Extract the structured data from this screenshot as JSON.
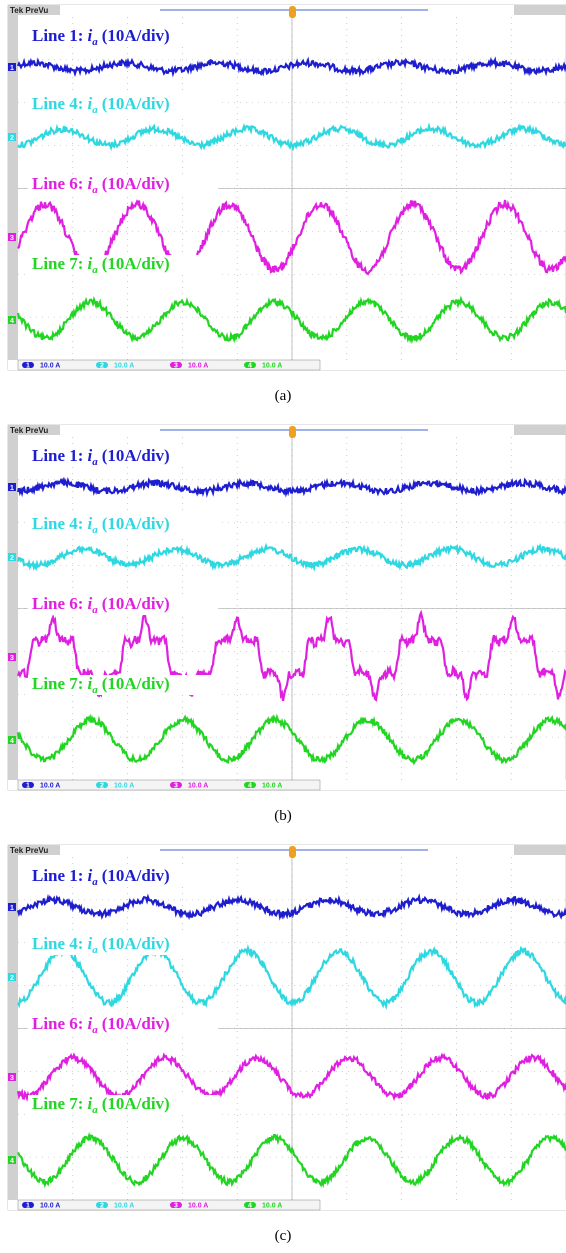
{
  "panels": [
    {
      "caption": "(a)",
      "header": "Tek PreVu",
      "traces": [
        {
          "line": "Line 1:",
          "symbol": "i",
          "subscript": "a",
          "scale": "(10A/div)",
          "marker": "1",
          "color": "#1e1ecf"
        },
        {
          "line": "Line 4:",
          "symbol": "i",
          "subscript": "a",
          "scale": "(10A/div)",
          "marker": "2",
          "color": "#2fd8e0"
        },
        {
          "line": "Line 6:",
          "symbol": "i",
          "subscript": "a",
          "scale": "(10A/div)",
          "marker": "3",
          "color": "#e020e0"
        },
        {
          "line": "Line 7:",
          "symbol": "i",
          "subscript": "a",
          "scale": "(10A/div)",
          "marker": "4",
          "color": "#22d522"
        }
      ],
      "readouts": [
        {
          "channel": "1",
          "value": "10.0 A"
        },
        {
          "channel": "2",
          "value": "10.0 A"
        },
        {
          "channel": "3",
          "value": "10.0 A"
        },
        {
          "channel": "4",
          "value": "10.0 A"
        }
      ]
    },
    {
      "caption": "(b)",
      "header": "Tek PreVu",
      "traces": [
        {
          "line": "Line 1:",
          "symbol": "i",
          "subscript": "a",
          "scale": "(10A/div)",
          "marker": "1",
          "color": "#1e1ecf"
        },
        {
          "line": "Line 4:",
          "symbol": "i",
          "subscript": "a",
          "scale": "(10A/div)",
          "marker": "2",
          "color": "#2fd8e0"
        },
        {
          "line": "Line 6:",
          "symbol": "i",
          "subscript": "a",
          "scale": "(10A/div)",
          "marker": "3",
          "color": "#e020e0"
        },
        {
          "line": "Line 7:",
          "symbol": "i",
          "subscript": "a",
          "scale": "(10A/div)",
          "marker": "4",
          "color": "#22d522"
        }
      ],
      "readouts": [
        {
          "channel": "1",
          "value": "10.0 A"
        },
        {
          "channel": "2",
          "value": "10.0 A"
        },
        {
          "channel": "3",
          "value": "10.0 A"
        },
        {
          "channel": "4",
          "value": "10.0 A"
        }
      ]
    },
    {
      "caption": "(c)",
      "header": "Tek PreVu",
      "traces": [
        {
          "line": "Line 1:",
          "symbol": "i",
          "subscript": "a",
          "scale": "(10A/div)",
          "marker": "1",
          "color": "#1e1ecf"
        },
        {
          "line": "Line 4:",
          "symbol": "i",
          "subscript": "a",
          "scale": "(10A/div)",
          "marker": "2",
          "color": "#2fd8e0"
        },
        {
          "line": "Line 6:",
          "symbol": "i",
          "subscript": "a",
          "scale": "(10A/div)",
          "marker": "3",
          "color": "#e020e0"
        },
        {
          "line": "Line 7:",
          "symbol": "i",
          "subscript": "a",
          "scale": "(10A/div)",
          "marker": "4",
          "color": "#22d522"
        }
      ],
      "readouts": [
        {
          "channel": "1",
          "value": "10.0 A"
        },
        {
          "channel": "2",
          "value": "10.0 A"
        },
        {
          "channel": "3",
          "value": "10.0 A"
        },
        {
          "channel": "4",
          "value": "10.0 A"
        }
      ]
    }
  ]
}
